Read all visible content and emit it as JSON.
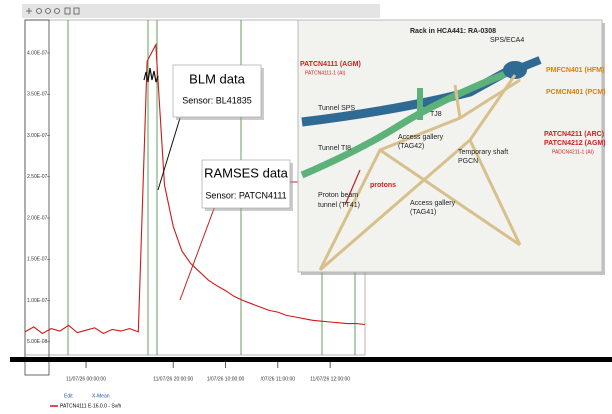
{
  "chart_data": {
    "type": "line",
    "x": [
      null,
      null,
      null,
      null,
      null,
      null,
      null,
      "11/07/26 00:00:00",
      null,
      null,
      null,
      null,
      null,
      null,
      null,
      null,
      null,
      "11/07/26 20:00:00",
      null,
      null,
      null,
      null,
      null,
      "1/07/26 10:00:00",
      null,
      null,
      null,
      null,
      null,
      "/07/26 11:00:00",
      null,
      null,
      null,
      null,
      null,
      "11/07/26 12:00:00",
      null,
      null,
      null,
      null
    ],
    "series": [
      {
        "name": "PATCN4111 E-16.0.0 - Sv/h",
        "color": "#d01818",
        "values": [
          6.2e-08,
          6.8e-08,
          6e-08,
          6.6e-08,
          6.3e-08,
          7e-08,
          6.1e-08,
          6.4e-08,
          6.7e-08,
          6e-08,
          6.5e-08,
          6.3e-08,
          6.6e-08,
          6.2e-08,
          3.9e-07,
          4.1e-07,
          2.4e-07,
          1.9e-07,
          1.6e-07,
          1.45e-07,
          1.35e-07,
          1.25e-07,
          1.18e-07,
          1.12e-07,
          1.05e-07,
          1e-07,
          9.6e-08,
          9.2e-08,
          8.8e-08,
          8.6e-08,
          8.2e-08,
          8e-08,
          7.8e-08,
          7.6e-08,
          7.5e-08,
          7.4e-08,
          7.3e-08,
          7.2e-08,
          7.2e-08,
          7.1e-08
        ]
      }
    ],
    "ylim": [
      3.4e-08,
      4.4e-07
    ],
    "yticks": [
      {
        "value": 5e-08,
        "label": "5.00E-08"
      },
      {
        "value": 1e-07,
        "label": "1.00E-07"
      },
      {
        "value": 1.5e-07,
        "label": "1.50E-07"
      },
      {
        "value": 2e-07,
        "label": "2.00E-07"
      },
      {
        "value": 2.5e-07,
        "label": "2.50E-07"
      },
      {
        "value": 3e-07,
        "label": "3.00E-07"
      },
      {
        "value": 3.5e-07,
        "label": "3.50E-07"
      },
      {
        "value": 4e-07,
        "label": "4.00E-07"
      }
    ],
    "annotations": [
      "BLM data",
      "Sensor: BL41835",
      "RAMSES data",
      "Sensor: PATCN4111"
    ]
  },
  "legend": {
    "headers": [
      "Edit",
      "X-Mean"
    ]
  },
  "diagram": {
    "title": "Rack in HCA441: RA-0308",
    "labels": [
      "SPS/ECA4",
      "PATCN4111 (AGM)",
      "PATCN4111-1 (AI)",
      "PMFCN401 (HFM)",
      "PCMCN401 (PCM)",
      "Tunnel SPS",
      "TJ8",
      "Tunnel TI8",
      "Access gallery",
      "(TAG42)",
      "Temporary shaft",
      "PGCN",
      "PATCN4211 (ARC)",
      "PATCN4212 (AGM)",
      "PADCN4211-1 (AI)",
      "protons",
      "Proton beam",
      "tunnel (TT41)",
      "Access gallery",
      "(TAG41)"
    ]
  }
}
